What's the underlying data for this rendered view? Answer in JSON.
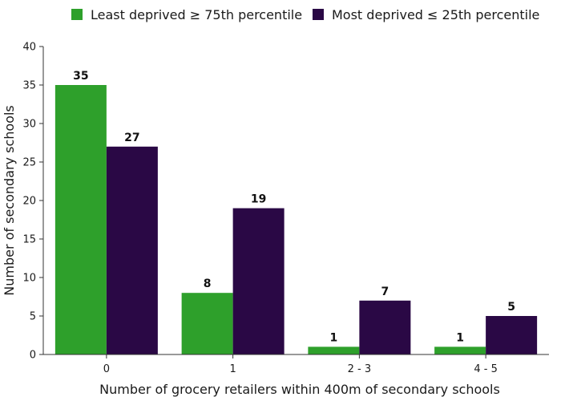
{
  "chart_data": {
    "type": "bar",
    "title": "",
    "xlabel": "Number of grocery retailers within 400m of secondary schools",
    "ylabel": "Number of secondary schools",
    "categories": [
      "0",
      "1",
      "2 - 3",
      "4 - 5"
    ],
    "ylim": [
      0,
      40
    ],
    "yticks": [
      0,
      5,
      10,
      15,
      20,
      25,
      30,
      35,
      40
    ],
    "grid": false,
    "legend_position": "top",
    "series": [
      {
        "name": "Least deprived ≥ 75th percentile",
        "color": "#2ea02b",
        "values": [
          35,
          8,
          1,
          1
        ]
      },
      {
        "name": "Most deprived ≤ 25th percentile",
        "color": "#2a0845",
        "values": [
          27,
          19,
          7,
          5
        ]
      }
    ]
  }
}
